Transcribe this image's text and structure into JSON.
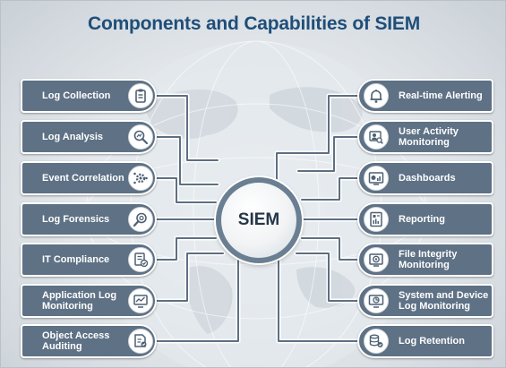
{
  "title": "Components and Capabilities of SIEM",
  "hub": {
    "label": "SIEM"
  },
  "left_items": [
    {
      "label": "Log Collection",
      "icon": "clipboard-icon"
    },
    {
      "label": "Log Analysis",
      "icon": "magnifier-analysis-icon"
    },
    {
      "label": "Event Correlation",
      "icon": "gear-network-icon"
    },
    {
      "label": "Log Forensics",
      "icon": "magnifier-icon"
    },
    {
      "label": "IT Compliance",
      "icon": "checklist-icon"
    },
    {
      "label": "Application Log\nMonitoring",
      "icon": "monitor-chart-icon"
    },
    {
      "label": "Object Access\nAuditing",
      "icon": "document-audit-icon"
    }
  ],
  "right_items": [
    {
      "label": "Real-time Alerting",
      "icon": "bell-icon"
    },
    {
      "label": "User Activity\nMonitoring",
      "icon": "user-search-icon"
    },
    {
      "label": "Dashboards",
      "icon": "dashboard-icon"
    },
    {
      "label": "Reporting",
      "icon": "report-icon"
    },
    {
      "label": "File Integrity\nMonitoring",
      "icon": "file-integrity-icon"
    },
    {
      "label": "System and Device\nLog Monitoring",
      "icon": "system-monitor-icon"
    },
    {
      "label": "Log Retention",
      "icon": "database-icon"
    }
  ],
  "colors": {
    "title": "#1f4e79",
    "pill": "#5e7185",
    "wire": "#5d6f82",
    "hub_ring": "#6b7f92",
    "icon": "#4d6073"
  }
}
